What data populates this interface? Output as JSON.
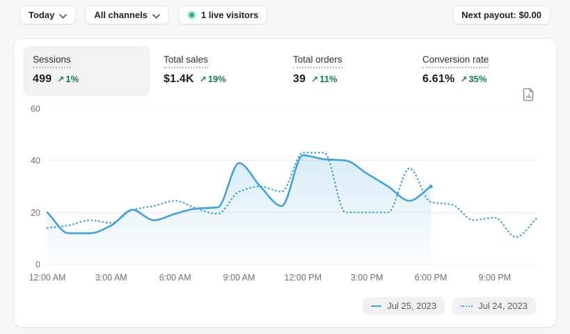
{
  "topbar": {
    "date_filter": "Today",
    "channel_filter": "All channels",
    "live_visitors": "1 live visitors",
    "next_payout": "Next payout: $0.00"
  },
  "icons": {
    "trend_up_arrow": "↗"
  },
  "colors": {
    "accent_blue": "#42a1d9",
    "success_green": "#137a4e",
    "live_dot_green": "#2fae77",
    "grid_gray": "#ececec",
    "axis_label_gray": "#6d7175"
  },
  "metrics": [
    {
      "label": "Sessions",
      "value": "499",
      "delta": "1%",
      "active": true
    },
    {
      "label": "Total sales",
      "value": "$1.4K",
      "delta": "19%",
      "active": false
    },
    {
      "label": "Total orders",
      "value": "39",
      "delta": "11%",
      "active": false
    },
    {
      "label": "Conversion rate",
      "value": "6.61%",
      "delta": "35%",
      "active": false
    }
  ],
  "chart_data": {
    "type": "line",
    "x_unit": "hour of day",
    "x_tick_labels": [
      "12:00 AM",
      "3:00 AM",
      "6:00 AM",
      "9:00 AM",
      "12:00 PM",
      "3:00 PM",
      "6:00 PM",
      "9:00 PM"
    ],
    "x_tick_hours": [
      0,
      3,
      6,
      9,
      12,
      15,
      18,
      21
    ],
    "xlim_hours": [
      0,
      23
    ],
    "yticks": [
      0,
      20,
      40,
      60
    ],
    "ylim": [
      0,
      60
    ],
    "grid": "horizontal",
    "legend_position": "bottom-right",
    "series": [
      {
        "name": "Jul 25, 2023",
        "style": "solid",
        "area_fill": true,
        "hours": [
          0,
          1,
          2,
          3,
          4,
          5,
          6,
          7,
          8,
          9,
          10,
          11,
          12,
          13,
          14,
          15,
          16,
          17,
          18
        ],
        "values": [
          20,
          12,
          12,
          15,
          21,
          17,
          19.5,
          21.5,
          22,
          39,
          30,
          22.5,
          42,
          40.5,
          40,
          35,
          30,
          24.5,
          30
        ]
      },
      {
        "name": "Jul 24, 2023",
        "style": "dotted",
        "area_fill": false,
        "hours": [
          0,
          1,
          2,
          3,
          4,
          5,
          6,
          7,
          8,
          9,
          10,
          11,
          12,
          13,
          14,
          15,
          16,
          17,
          18,
          19,
          20,
          21,
          22,
          23
        ],
        "values": [
          14,
          15,
          17,
          16,
          21,
          22.5,
          24.5,
          21.5,
          19.5,
          28,
          30,
          28,
          43,
          43,
          20,
          20,
          20,
          37,
          24,
          23,
          17,
          18,
          10.5,
          18
        ]
      }
    ]
  }
}
